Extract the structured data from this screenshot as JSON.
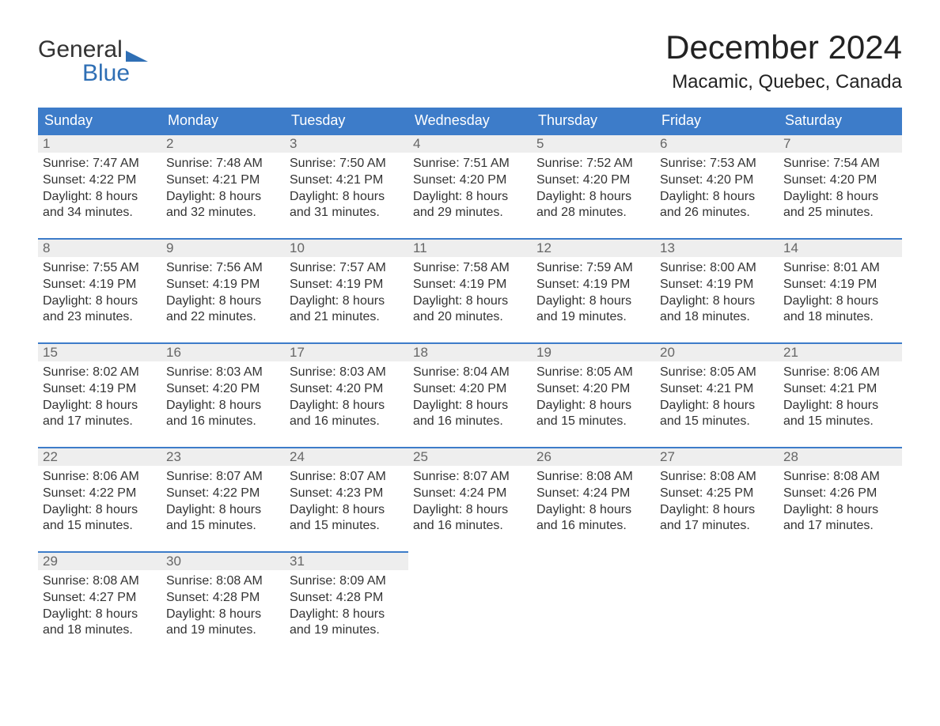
{
  "logo": {
    "line1": "General",
    "line2": "Blue"
  },
  "title": "December 2024",
  "location": "Macamic, Quebec, Canada",
  "day_headers": [
    "Sunday",
    "Monday",
    "Tuesday",
    "Wednesday",
    "Thursday",
    "Friday",
    "Saturday"
  ],
  "colors": {
    "header_blue": "#3d7cc9",
    "accent_blue": "#2f6fb5",
    "daynum_bg": "#eeeeee",
    "text": "#333333",
    "muted": "#666666",
    "background": "#ffffff"
  },
  "labels": {
    "sunrise": "Sunrise",
    "sunset": "Sunset",
    "daylight": "Daylight"
  },
  "weeks": [
    [
      {
        "n": 1,
        "sunrise": "7:47 AM",
        "sunset": "4:22 PM",
        "dl1": "8 hours",
        "dl2": "and 34 minutes."
      },
      {
        "n": 2,
        "sunrise": "7:48 AM",
        "sunset": "4:21 PM",
        "dl1": "8 hours",
        "dl2": "and 32 minutes."
      },
      {
        "n": 3,
        "sunrise": "7:50 AM",
        "sunset": "4:21 PM",
        "dl1": "8 hours",
        "dl2": "and 31 minutes."
      },
      {
        "n": 4,
        "sunrise": "7:51 AM",
        "sunset": "4:20 PM",
        "dl1": "8 hours",
        "dl2": "and 29 minutes."
      },
      {
        "n": 5,
        "sunrise": "7:52 AM",
        "sunset": "4:20 PM",
        "dl1": "8 hours",
        "dl2": "and 28 minutes."
      },
      {
        "n": 6,
        "sunrise": "7:53 AM",
        "sunset": "4:20 PM",
        "dl1": "8 hours",
        "dl2": "and 26 minutes."
      },
      {
        "n": 7,
        "sunrise": "7:54 AM",
        "sunset": "4:20 PM",
        "dl1": "8 hours",
        "dl2": "and 25 minutes."
      }
    ],
    [
      {
        "n": 8,
        "sunrise": "7:55 AM",
        "sunset": "4:19 PM",
        "dl1": "8 hours",
        "dl2": "and 23 minutes."
      },
      {
        "n": 9,
        "sunrise": "7:56 AM",
        "sunset": "4:19 PM",
        "dl1": "8 hours",
        "dl2": "and 22 minutes."
      },
      {
        "n": 10,
        "sunrise": "7:57 AM",
        "sunset": "4:19 PM",
        "dl1": "8 hours",
        "dl2": "and 21 minutes."
      },
      {
        "n": 11,
        "sunrise": "7:58 AM",
        "sunset": "4:19 PM",
        "dl1": "8 hours",
        "dl2": "and 20 minutes."
      },
      {
        "n": 12,
        "sunrise": "7:59 AM",
        "sunset": "4:19 PM",
        "dl1": "8 hours",
        "dl2": "and 19 minutes."
      },
      {
        "n": 13,
        "sunrise": "8:00 AM",
        "sunset": "4:19 PM",
        "dl1": "8 hours",
        "dl2": "and 18 minutes."
      },
      {
        "n": 14,
        "sunrise": "8:01 AM",
        "sunset": "4:19 PM",
        "dl1": "8 hours",
        "dl2": "and 18 minutes."
      }
    ],
    [
      {
        "n": 15,
        "sunrise": "8:02 AM",
        "sunset": "4:19 PM",
        "dl1": "8 hours",
        "dl2": "and 17 minutes."
      },
      {
        "n": 16,
        "sunrise": "8:03 AM",
        "sunset": "4:20 PM",
        "dl1": "8 hours",
        "dl2": "and 16 minutes."
      },
      {
        "n": 17,
        "sunrise": "8:03 AM",
        "sunset": "4:20 PM",
        "dl1": "8 hours",
        "dl2": "and 16 minutes."
      },
      {
        "n": 18,
        "sunrise": "8:04 AM",
        "sunset": "4:20 PM",
        "dl1": "8 hours",
        "dl2": "and 16 minutes."
      },
      {
        "n": 19,
        "sunrise": "8:05 AM",
        "sunset": "4:20 PM",
        "dl1": "8 hours",
        "dl2": "and 15 minutes."
      },
      {
        "n": 20,
        "sunrise": "8:05 AM",
        "sunset": "4:21 PM",
        "dl1": "8 hours",
        "dl2": "and 15 minutes."
      },
      {
        "n": 21,
        "sunrise": "8:06 AM",
        "sunset": "4:21 PM",
        "dl1": "8 hours",
        "dl2": "and 15 minutes."
      }
    ],
    [
      {
        "n": 22,
        "sunrise": "8:06 AM",
        "sunset": "4:22 PM",
        "dl1": "8 hours",
        "dl2": "and 15 minutes."
      },
      {
        "n": 23,
        "sunrise": "8:07 AM",
        "sunset": "4:22 PM",
        "dl1": "8 hours",
        "dl2": "and 15 minutes."
      },
      {
        "n": 24,
        "sunrise": "8:07 AM",
        "sunset": "4:23 PM",
        "dl1": "8 hours",
        "dl2": "and 15 minutes."
      },
      {
        "n": 25,
        "sunrise": "8:07 AM",
        "sunset": "4:24 PM",
        "dl1": "8 hours",
        "dl2": "and 16 minutes."
      },
      {
        "n": 26,
        "sunrise": "8:08 AM",
        "sunset": "4:24 PM",
        "dl1": "8 hours",
        "dl2": "and 16 minutes."
      },
      {
        "n": 27,
        "sunrise": "8:08 AM",
        "sunset": "4:25 PM",
        "dl1": "8 hours",
        "dl2": "and 17 minutes."
      },
      {
        "n": 28,
        "sunrise": "8:08 AM",
        "sunset": "4:26 PM",
        "dl1": "8 hours",
        "dl2": "and 17 minutes."
      }
    ],
    [
      {
        "n": 29,
        "sunrise": "8:08 AM",
        "sunset": "4:27 PM",
        "dl1": "8 hours",
        "dl2": "and 18 minutes."
      },
      {
        "n": 30,
        "sunrise": "8:08 AM",
        "sunset": "4:28 PM",
        "dl1": "8 hours",
        "dl2": "and 19 minutes."
      },
      {
        "n": 31,
        "sunrise": "8:09 AM",
        "sunset": "4:28 PM",
        "dl1": "8 hours",
        "dl2": "and 19 minutes."
      },
      null,
      null,
      null,
      null
    ]
  ]
}
